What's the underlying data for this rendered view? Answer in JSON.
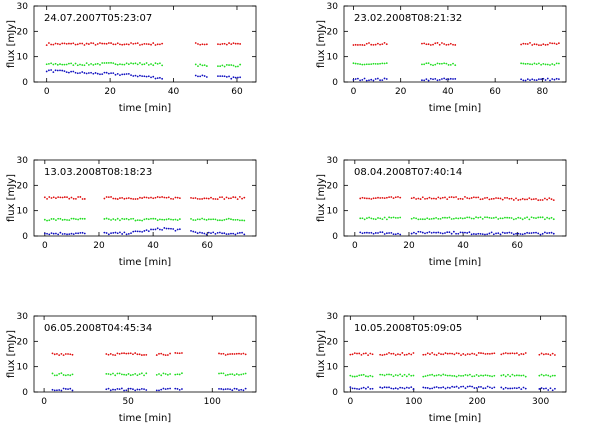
{
  "colors": {
    "red": "#e01010",
    "green": "#22dd22",
    "blue": "#1010c0",
    "axis": "#000000"
  },
  "chart_data": [
    {
      "type": "scatter",
      "title": "24.07.2007T05:23:07",
      "xlabel": "time [min]",
      "ylabel": "flux [mJy]",
      "xlim": [
        -4,
        66
      ],
      "ylim": [
        0,
        30
      ],
      "xticks": [
        0,
        20,
        40,
        60
      ],
      "yticks": [
        0,
        10,
        20,
        30
      ],
      "segments": [
        [
          0,
          37
        ],
        [
          47,
          51
        ],
        [
          54,
          61
        ]
      ],
      "series": [
        {
          "color": "red",
          "values": [
            15,
            15,
            15,
            15,
            15,
            15
          ]
        },
        {
          "color": "green",
          "values": [
            7,
            7,
            7.3,
            7,
            6.5,
            6.5
          ]
        },
        {
          "color": "blue",
          "values": [
            4.5,
            3.5,
            3,
            1.5,
            2.5,
            1.5
          ]
        }
      ]
    },
    {
      "type": "scatter",
      "title": "23.02.2008T08:21:32",
      "xlabel": "time [min]",
      "ylabel": "flux [mJy]",
      "xlim": [
        -4,
        90
      ],
      "ylim": [
        0,
        30
      ],
      "xticks": [
        0,
        20,
        40,
        60,
        80
      ],
      "yticks": [
        0,
        10,
        20,
        30
      ],
      "segments": [
        [
          0,
          15
        ],
        [
          29,
          44
        ],
        [
          71,
          87
        ]
      ],
      "series": [
        {
          "color": "red",
          "values": [
            15,
            15,
            15,
            15,
            15,
            15
          ]
        },
        {
          "color": "green",
          "values": [
            7,
            7,
            7,
            7,
            7,
            7
          ]
        },
        {
          "color": "blue",
          "values": [
            1,
            1,
            1,
            1,
            1,
            1
          ]
        }
      ]
    },
    {
      "type": "scatter",
      "title": "13.03.2008T08:18:23",
      "xlabel": "time [min]",
      "ylabel": "flux [mJy]",
      "xlim": [
        -4,
        78
      ],
      "ylim": [
        0,
        30
      ],
      "xticks": [
        0,
        20,
        40,
        60
      ],
      "yticks": [
        0,
        10,
        20,
        30
      ],
      "segments": [
        [
          0,
          15
        ],
        [
          22,
          50
        ],
        [
          54,
          74
        ]
      ],
      "series": [
        {
          "color": "red",
          "values": [
            15,
            15,
            15,
            15,
            15,
            15
          ]
        },
        {
          "color": "green",
          "values": [
            6.5,
            6.5,
            6.5,
            6.5,
            6.5,
            6.5
          ]
        },
        {
          "color": "blue",
          "values": [
            1,
            1,
            1,
            3,
            1,
            1
          ]
        }
      ]
    },
    {
      "type": "scatter",
      "title": "08.04.2008T07:40:14",
      "xlabel": "time [min]",
      "ylabel": "flux [mJy]",
      "xlim": [
        -4,
        78
      ],
      "ylim": [
        0,
        30
      ],
      "xticks": [
        0,
        20,
        40,
        60
      ],
      "yticks": [
        0,
        10,
        20,
        30
      ],
      "segments": [
        [
          2,
          17
        ],
        [
          21,
          74
        ]
      ],
      "series": [
        {
          "color": "red",
          "values": [
            15,
            15,
            15,
            15,
            14.5,
            14.5
          ]
        },
        {
          "color": "green",
          "values": [
            7,
            7,
            7,
            7,
            7,
            7
          ]
        },
        {
          "color": "blue",
          "values": [
            1.5,
            1,
            1.5,
            1,
            1,
            1
          ]
        }
      ]
    },
    {
      "type": "scatter",
      "title": "06.05.2008T04:45:34",
      "xlabel": "time [min]",
      "ylabel": "flux [mJy]",
      "xlim": [
        -6,
        126
      ],
      "ylim": [
        0,
        30
      ],
      "xticks": [
        0,
        50,
        100
      ],
      "yticks": [
        0,
        10,
        20,
        30
      ],
      "segments": [
        [
          5,
          18
        ],
        [
          37,
          62
        ],
        [
          67,
          75
        ],
        [
          78,
          83
        ],
        [
          104,
          120
        ]
      ],
      "series": [
        {
          "color": "red",
          "values": [
            15,
            15,
            15,
            15,
            15,
            15
          ]
        },
        {
          "color": "green",
          "values": [
            7,
            7,
            7,
            7,
            7,
            7
          ]
        },
        {
          "color": "blue",
          "values": [
            1,
            1,
            1,
            1,
            1,
            1
          ]
        }
      ]
    },
    {
      "type": "scatter",
      "title": "10.05.2008T05:09:05",
      "xlabel": "time [min]",
      "ylabel": "flux [mJy]",
      "xlim": [
        -10,
        340
      ],
      "ylim": [
        0,
        30
      ],
      "xticks": [
        0,
        100,
        200,
        300
      ],
      "yticks": [
        0,
        10,
        20,
        30
      ],
      "segments": [
        [
          0,
          35
        ],
        [
          47,
          100
        ],
        [
          115,
          148
        ],
        [
          150,
          227
        ],
        [
          238,
          278
        ],
        [
          298,
          325
        ]
      ],
      "series": [
        {
          "color": "red",
          "values": [
            15,
            15,
            15,
            15,
            15,
            15
          ]
        },
        {
          "color": "green",
          "values": [
            6.5,
            6.5,
            6.5,
            6.5,
            6.5,
            6.5
          ]
        },
        {
          "color": "blue",
          "values": [
            1.5,
            1.5,
            1.5,
            2,
            1.5,
            1
          ]
        }
      ]
    }
  ]
}
